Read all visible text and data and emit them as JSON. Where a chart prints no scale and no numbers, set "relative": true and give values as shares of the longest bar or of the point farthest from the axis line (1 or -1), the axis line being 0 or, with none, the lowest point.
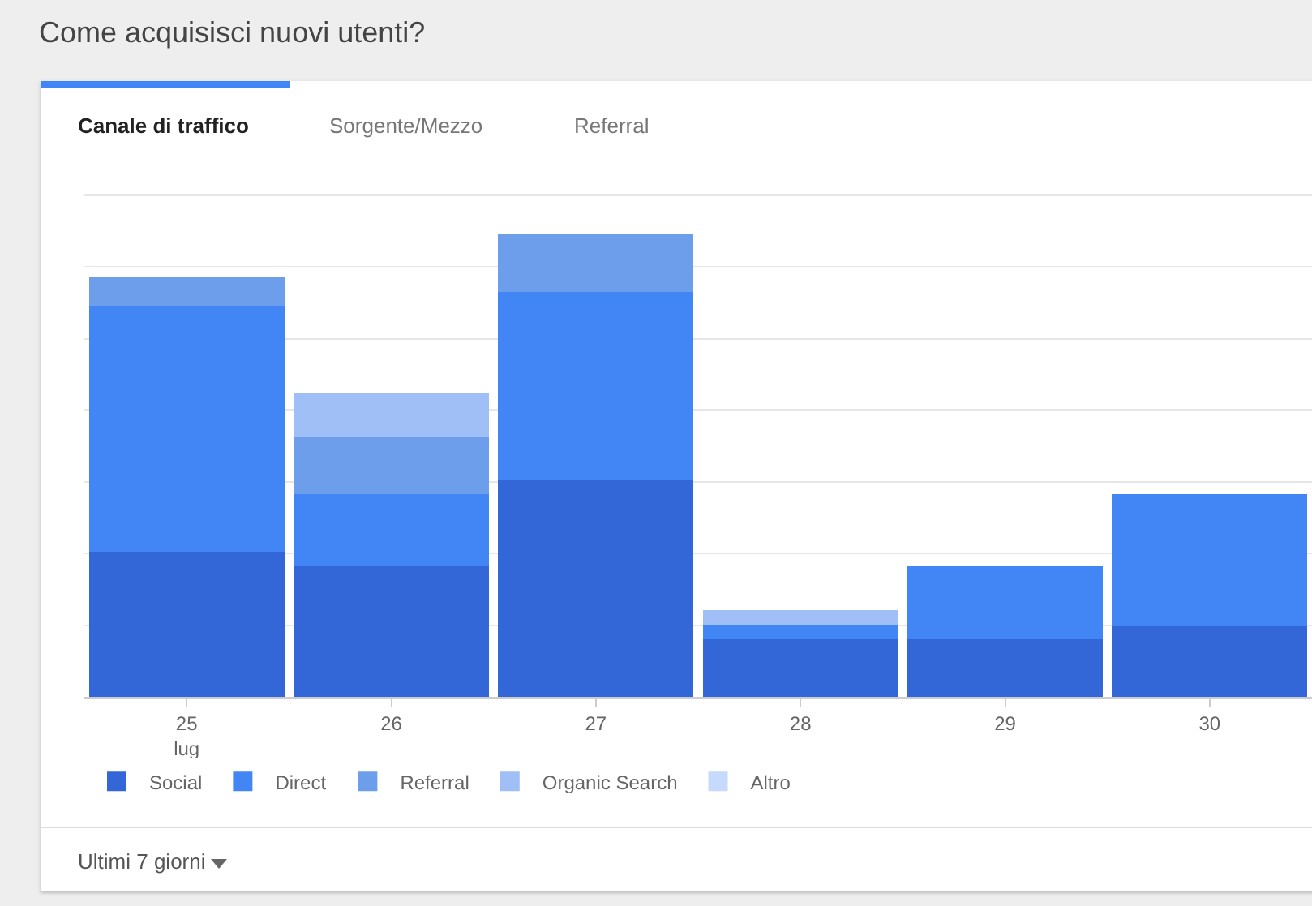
{
  "chart_data": {
    "type": "bar",
    "title": "Come acquisisci nuovi utenti?",
    "stacked": true,
    "relative": true,
    "grid": "y",
    "legend": "bottom",
    "categories": [
      "25\nlug",
      "26",
      "27",
      "28",
      "29",
      "30"
    ],
    "annotations": [
      "Canale di traffico",
      "Sorgente/Mezzo",
      "Referral",
      "Ultimi 7 giorni"
    ],
    "series": [
      {
        "name": "Social",
        "color": "#3366d6",
        "values": [
          0.314,
          0.283,
          0.47,
          0.124,
          0.124,
          0.155
        ]
      },
      {
        "name": "Direct",
        "color": "#4285f4",
        "values": [
          0.53,
          0.155,
          0.406,
          0.032,
          0.159,
          0.283
        ]
      },
      {
        "name": "Referral",
        "color": "#6d9eeb",
        "values": [
          0.064,
          0.124,
          0.124,
          null,
          null,
          null
        ]
      },
      {
        "name": "Organic Search",
        "color": "#a0bff7",
        "values": [
          null,
          0.095,
          null,
          0.032,
          null,
          null
        ]
      },
      {
        "name": "Altro",
        "color": "#c6dafc",
        "values": [
          null,
          null,
          null,
          null,
          null,
          null
        ]
      }
    ]
  }
}
